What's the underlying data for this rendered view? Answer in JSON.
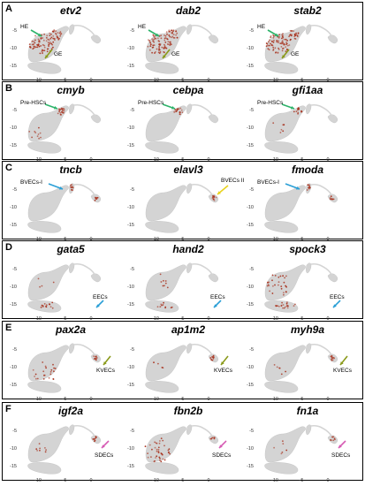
{
  "colors": {
    "cloud": "#d4d4d4",
    "expr": "#a8321e",
    "green_arrow": "#2db36a",
    "olive_arrow": "#8a9a1a",
    "blue_arrow": "#2a9fd6",
    "yellow_arrow": "#e8d21a",
    "pink_arrow": "#d65bb4"
  },
  "axis_ticks": {
    "y": [
      "-5",
      "-10",
      "-15"
    ],
    "x": [
      "-10",
      "-5",
      "0"
    ]
  },
  "panels": [
    {
      "letter": "A",
      "genes": [
        "etv2",
        "dab2",
        "stab2"
      ],
      "annotations": [
        [
          "HE",
          "GE"
        ],
        [
          "HE",
          "GE"
        ],
        [
          "HE",
          "GE"
        ]
      ]
    },
    {
      "letter": "B",
      "genes": [
        "cmyb",
        "cebpa",
        "gfi1aa"
      ],
      "annotations": [
        [
          "Pre-HSCs"
        ],
        [
          "Pre-HSCs"
        ],
        [
          "Pre-HSCs"
        ]
      ]
    },
    {
      "letter": "C",
      "genes": [
        "tncb",
        "elavl3",
        "fmoda"
      ],
      "annotations": [
        [
          "BVECs-I"
        ],
        [
          "BVECs II"
        ],
        [
          "BVECs-I"
        ]
      ]
    },
    {
      "letter": "D",
      "genes": [
        "gata5",
        "hand2",
        "spock3"
      ],
      "annotations": [
        [
          "EECs"
        ],
        [
          "EECs"
        ],
        [
          "EECs"
        ]
      ]
    },
    {
      "letter": "E",
      "genes": [
        "pax2a",
        "ap1m2",
        "myh9a"
      ],
      "annotations": [
        [
          "KVECs"
        ],
        [
          "KVECs"
        ],
        [
          "KVECs"
        ]
      ]
    },
    {
      "letter": "F",
      "genes": [
        "igf2a",
        "fbn2b",
        "fn1a"
      ],
      "annotations": [
        [
          "SDECs"
        ],
        [
          "SDECs"
        ],
        [
          "SDECs"
        ]
      ]
    }
  ]
}
